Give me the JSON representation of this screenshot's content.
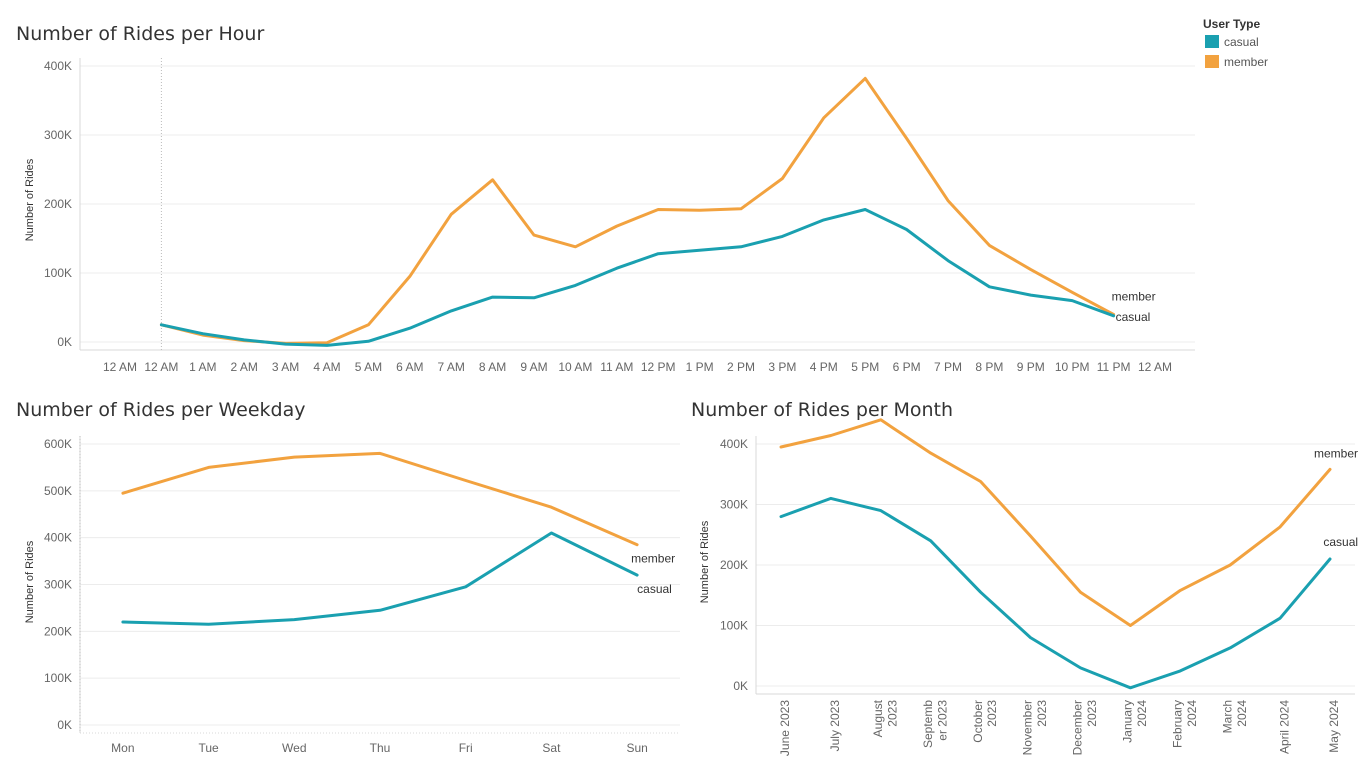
{
  "legend": {
    "title": "User Type",
    "items": [
      {
        "label": "casual",
        "color": "#1aa0b0"
      },
      {
        "label": "member",
        "color": "#f2a23f"
      }
    ]
  },
  "chart_data": [
    {
      "type": "line",
      "title": "Number of Rides per Hour",
      "ylabel": "Number of Rides",
      "xlabel": "",
      "ylim": [
        0,
        400000
      ],
      "yticks": [
        0,
        100000,
        200000,
        300000,
        400000
      ],
      "ytick_labels": [
        "0K",
        "100K",
        "200K",
        "300K",
        "400K"
      ],
      "x_tick_labels": [
        "12 AM",
        "12 AM",
        "1 AM",
        "2 AM",
        "3 AM",
        "4 AM",
        "5 AM",
        "6 AM",
        "7 AM",
        "8 AM",
        "9 AM",
        "10 AM",
        "11 AM",
        "12 PM",
        "1 PM",
        "2 PM",
        "3 PM",
        "4 PM",
        "5 PM",
        "6 PM",
        "7 PM",
        "8 PM",
        "9 PM",
        "10 PM",
        "11 PM",
        "12 AM"
      ],
      "x": [
        0,
        1,
        2,
        3,
        4,
        5,
        6,
        7,
        8,
        9,
        10,
        11,
        12,
        13,
        14,
        15,
        16,
        17,
        18,
        19,
        20,
        21,
        22,
        23
      ],
      "xlim": [
        -1,
        24
      ],
      "series": [
        {
          "name": "member",
          "color": "#f2a23f",
          "values": [
            25000,
            10000,
            2000,
            -2000,
            -1000,
            25000,
            95000,
            185000,
            235000,
            155000,
            138000,
            168000,
            192000,
            191000,
            193000,
            237000,
            325000,
            382000,
            295000,
            205000,
            140000,
            105000,
            72000,
            40000
          ]
        },
        {
          "name": "casual",
          "color": "#1aa0b0",
          "values": [
            25000,
            12000,
            3000,
            -3000,
            -5000,
            1000,
            20000,
            45000,
            65000,
            64000,
            82000,
            107000,
            128000,
            133000,
            138000,
            153000,
            177000,
            192000,
            163000,
            118000,
            80000,
            68000,
            60000,
            38000
          ]
        }
      ]
    },
    {
      "type": "line",
      "title": "Number of Rides per Weekday",
      "ylabel": "Number of Rides",
      "xlabel": "",
      "ylim": [
        0,
        600000
      ],
      "yticks": [
        0,
        100000,
        200000,
        300000,
        400000,
        500000,
        600000
      ],
      "ytick_labels": [
        "0K",
        "100K",
        "200K",
        "300K",
        "400K",
        "500K",
        "600K"
      ],
      "categories": [
        "Mon",
        "Tue",
        "Wed",
        "Thu",
        "Fri",
        "Sat",
        "Sun"
      ],
      "series": [
        {
          "name": "member",
          "color": "#f2a23f",
          "values": [
            495000,
            550000,
            572000,
            580000,
            522000,
            465000,
            385000
          ]
        },
        {
          "name": "casual",
          "color": "#1aa0b0",
          "values": [
            220000,
            215000,
            225000,
            245000,
            295000,
            410000,
            320000
          ]
        }
      ]
    },
    {
      "type": "line",
      "title": "Number of Rides per Month",
      "ylabel": "Number of Rides",
      "xlabel": "",
      "ylim": [
        0,
        400000
      ],
      "yticks": [
        0,
        100000,
        200000,
        300000,
        400000
      ],
      "ytick_labels": [
        "0K",
        "100K",
        "200K",
        "300K",
        "400K"
      ],
      "categories": [
        [
          "June 2023"
        ],
        [
          "July 2023"
        ],
        [
          "August",
          "2023"
        ],
        [
          "Septemb",
          "er 2023"
        ],
        [
          "October",
          "2023"
        ],
        [
          "November",
          "2023"
        ],
        [
          "December",
          "2023"
        ],
        [
          "January",
          "2024"
        ],
        [
          "February",
          "2024"
        ],
        [
          "March",
          "2024"
        ],
        [
          "April 2024"
        ],
        [
          "May 2024"
        ]
      ],
      "series": [
        {
          "name": "member",
          "color": "#f2a23f",
          "values": [
            395000,
            414000,
            440000,
            385000,
            338000,
            248000,
            155000,
            100000,
            158000,
            200000,
            263000,
            358000
          ]
        },
        {
          "name": "casual",
          "color": "#1aa0b0",
          "values": [
            280000,
            310000,
            290000,
            240000,
            155000,
            80000,
            30000,
            -3000,
            25000,
            63000,
            112000,
            210000
          ]
        }
      ]
    }
  ]
}
